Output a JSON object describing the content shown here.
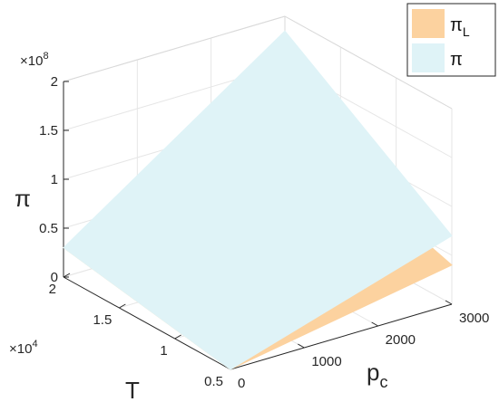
{
  "chart_data": {
    "type": "surface",
    "title": "",
    "x_axis": {
      "label": "T",
      "label_sub": "",
      "ticks": [
        "0.5",
        "1",
        "1.5",
        "2"
      ],
      "tick_values": [
        5000,
        10000,
        15000,
        20000
      ],
      "multiplier": "×10",
      "multiplier_exp": "4"
    },
    "y_axis": {
      "label": "p",
      "label_sub": "c",
      "ticks": [
        "0",
        "1000",
        "2000",
        "3000"
      ],
      "tick_values": [
        0,
        1000,
        2000,
        3000
      ]
    },
    "z_axis": {
      "label": "π",
      "ticks": [
        "0",
        "0.5",
        "1",
        "1.5",
        "2"
      ],
      "tick_values": [
        0,
        50000000.0,
        100000000.0,
        150000000.0,
        200000000.0
      ],
      "multiplier": "×10",
      "multiplier_exp": "8",
      "zlim": [
        0,
        200000000
      ]
    },
    "series": [
      {
        "name": "π",
        "name_sub": "L",
        "color": "#fcd29f",
        "corners": [
          {
            "T": 20000,
            "pc": 0,
            "value": 30000000
          },
          {
            "T": 20000,
            "pc": 3000,
            "value": 95000000
          },
          {
            "T": 5000,
            "pc": 3000,
            "value": 40000000
          },
          {
            "T": 5000,
            "pc": 0,
            "value": 0
          }
        ]
      },
      {
        "name": "π",
        "name_sub": "",
        "color": "#dff3f7",
        "corners": [
          {
            "T": 20000,
            "pc": 0,
            "value": 30000000
          },
          {
            "T": 20000,
            "pc": 3000,
            "value": 185000000
          },
          {
            "T": 5000,
            "pc": 3000,
            "value": 70000000
          },
          {
            "T": 5000,
            "pc": 0,
            "value": 0
          }
        ]
      }
    ],
    "legend_position": "top-right",
    "grid": true
  }
}
